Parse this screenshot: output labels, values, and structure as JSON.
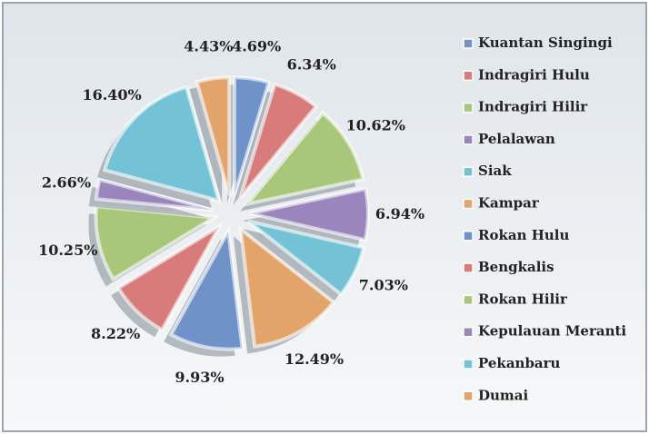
{
  "chart_data": {
    "type": "pie",
    "categories": [
      "Kuantan Singingi",
      "Indragiri Hulu",
      "Indragiri Hilir",
      "Pelalawan",
      "Siak",
      "Kampar",
      "Rokan Hulu",
      "Bengkalis",
      "Rokan Hilir",
      "Kepulauan Meranti",
      "Pekanbaru",
      "Dumai"
    ],
    "values": [
      4.69,
      6.34,
      10.62,
      6.94,
      7.03,
      12.49,
      9.93,
      8.22,
      10.25,
      2.66,
      16.4,
      4.43
    ],
    "value_labels": [
      "4.69%",
      "6.34%",
      "10.62%",
      "6.94%",
      "7.03%",
      "12.49%",
      "9.93%",
      "8.22%",
      "10.25%",
      "2.66%",
      "16.40%",
      "4.43%"
    ],
    "colors": [
      "#6f93c9",
      "#d77b7b",
      "#a9c77a",
      "#9a86bd",
      "#73c2d6",
      "#e3a46b",
      "#6f93c9",
      "#d77b7b",
      "#a9c77a",
      "#9a86bd",
      "#73c2d6",
      "#e3a46b"
    ],
    "legend": "right"
  }
}
